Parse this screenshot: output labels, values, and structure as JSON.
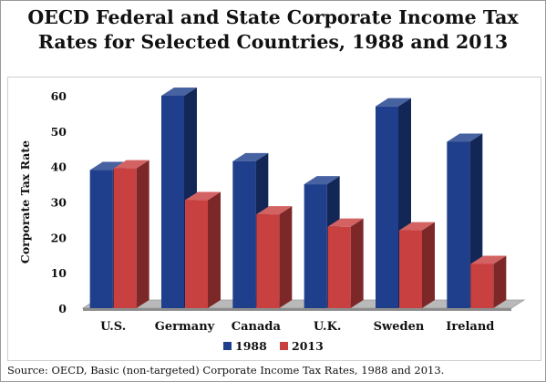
{
  "colors": {
    "series_1988": "#1f3f8c",
    "series_2013": "#c94040",
    "floor": "#b9b9b9"
  },
  "source_note": "Source: OECD, Basic (non-targeted) Corporate Income Tax Rates, 1988 and 2013.",
  "chart_data": {
    "type": "bar",
    "title": "OECD Federal and State Corporate Income Tax Rates for Selected Countries, 1988 and 2013",
    "title_lines": [
      "OECD Federal and State Corporate Income Tax",
      "Rates for Selected Countries, 1988 and 2013"
    ],
    "xlabel": "",
    "ylabel": "Corporate Tax Rate",
    "ylim": [
      0,
      60
    ],
    "yticks": [
      0,
      10,
      20,
      30,
      40,
      50,
      60
    ],
    "categories": [
      "U.S.",
      "Germany",
      "Canada",
      "U.K.",
      "Sweden",
      "Ireland"
    ],
    "series": [
      {
        "name": "1988",
        "values": [
          39,
          60,
          41.5,
          35,
          57,
          47
        ]
      },
      {
        "name": "2013",
        "values": [
          39.5,
          30.5,
          26.5,
          23,
          22,
          12.5
        ]
      }
    ],
    "style": "3d",
    "legend_position": "bottom",
    "grid": false
  }
}
